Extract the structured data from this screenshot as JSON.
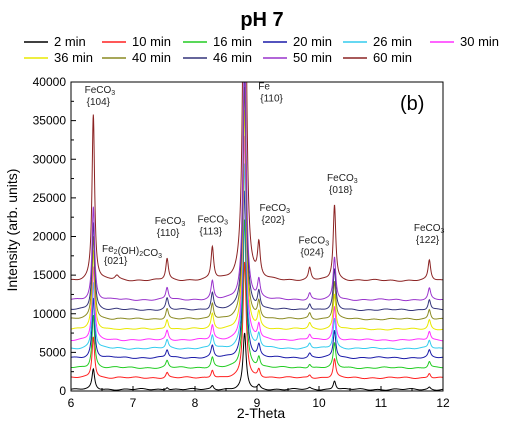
{
  "chart_data": {
    "type": "line",
    "title": "pH 7",
    "panel_label": "(b)",
    "xlabel": "2-Theta",
    "ylabel": "Intensity (arb. units)",
    "xlim": [
      6,
      12
    ],
    "ylim": [
      0,
      40000
    ],
    "x_ticks": [
      6,
      7,
      8,
      9,
      10,
      11,
      12
    ],
    "y_ticks": [
      0,
      5000,
      10000,
      15000,
      20000,
      25000,
      30000,
      35000,
      40000
    ],
    "legend_position": "top",
    "grid": false,
    "series": [
      {
        "name": "2 min",
        "color": "#000000",
        "baseline": 200,
        "scale": 0.12
      },
      {
        "name": "10 min",
        "color": "#ff2020",
        "baseline": 1700,
        "scale": 0.25
      },
      {
        "name": "16 min",
        "color": "#22cc22",
        "baseline": 3000,
        "scale": 0.32
      },
      {
        "name": "20 min",
        "color": "#1a1aa8",
        "baseline": 4300,
        "scale": 0.36
      },
      {
        "name": "26 min",
        "color": "#33ccee",
        "baseline": 5500,
        "scale": 0.4
      },
      {
        "name": "30 min",
        "color": "#ff30ff",
        "baseline": 6600,
        "scale": 0.44
      },
      {
        "name": "36 min",
        "color": "#e8e800",
        "baseline": 8000,
        "scale": 0.47
      },
      {
        "name": "40 min",
        "color": "#8a8a22",
        "baseline": 9300,
        "scale": 0.5
      },
      {
        "name": "46 min",
        "color": "#33337a",
        "baseline": 10500,
        "scale": 0.53
      },
      {
        "name": "50 min",
        "color": "#9933cc",
        "baseline": 11800,
        "scale": 0.56
      },
      {
        "name": "60 min",
        "color": "#8b2323",
        "baseline": 14300,
        "scale": 1.0
      }
    ],
    "peaks": [
      {
        "x": 6.36,
        "height": 21500,
        "width": 0.025
      },
      {
        "x": 6.74,
        "height": 600,
        "width": 0.04
      },
      {
        "x": 7.55,
        "height": 2800,
        "width": 0.025
      },
      {
        "x": 8.28,
        "height": 4200,
        "width": 0.025
      },
      {
        "x": 8.8,
        "height": 60000,
        "width": 0.03
      },
      {
        "x": 9.03,
        "height": 4200,
        "width": 0.025
      },
      {
        "x": 9.85,
        "height": 1600,
        "width": 0.025
      },
      {
        "x": 10.25,
        "height": 9800,
        "width": 0.025
      },
      {
        "x": 11.78,
        "height": 2600,
        "width": 0.025
      }
    ],
    "annotations": [
      {
        "lines": [
          "FeCO",
          "{104}"
        ],
        "sub": "3",
        "x": 6.22,
        "y": 38600
      },
      {
        "lines": [
          "Fe",
          "{110}"
        ],
        "sub": "",
        "x": 9.02,
        "y": 39000
      },
      {
        "lines": [
          "Fe2(OH)2CO3",
          "{021}"
        ],
        "sub": "",
        "x": 6.5,
        "y": 18000
      },
      {
        "lines": [
          "FeCO",
          "{110}"
        ],
        "sub": "3",
        "x": 7.35,
        "y": 21600
      },
      {
        "lines": [
          "FeCO",
          "{113}"
        ],
        "sub": "3",
        "x": 8.04,
        "y": 21800
      },
      {
        "lines": [
          "FeCO",
          "{202}"
        ],
        "sub": "3",
        "x": 9.04,
        "y": 23300
      },
      {
        "lines": [
          "FeCO",
          "{024}"
        ],
        "sub": "3",
        "x": 9.67,
        "y": 19100
      },
      {
        "lines": [
          "FeCO",
          "{018}"
        ],
        "sub": "3",
        "x": 10.13,
        "y": 27200
      },
      {
        "lines": [
          "FeCO",
          "{122}"
        ],
        "sub": "3",
        "x": 11.53,
        "y": 20700
      }
    ]
  }
}
